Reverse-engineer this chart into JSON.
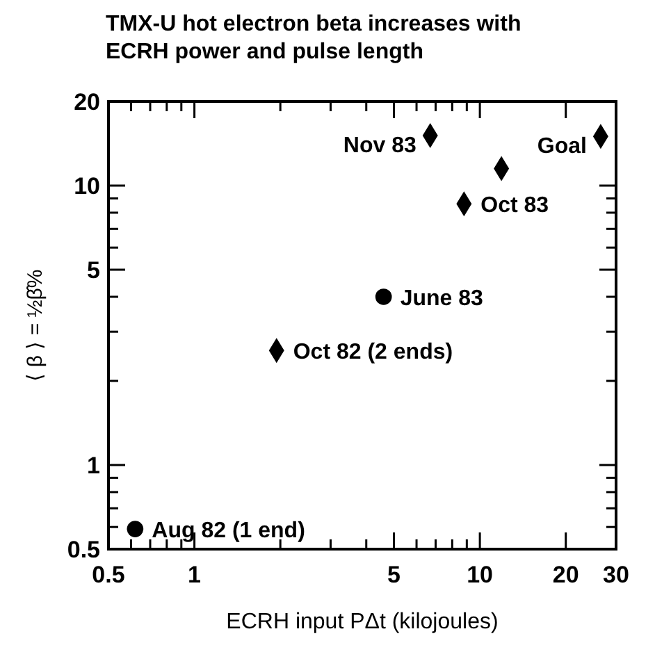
{
  "chart_data": {
    "type": "scatter",
    "title": "TMX-U hot electron beta increases with ECRH power and pulse length",
    "xlabel": "ECRH input PΔt (kilojoules)",
    "ylabel": "⟨ β ⟩ = ½β̂%",
    "log": "xy",
    "xlim": [
      0.5,
      30
    ],
    "ylim": [
      0.5,
      20
    ],
    "xticks": [
      0.5,
      {
        "value": 0.6,
        "label": null
      },
      {
        "value": 0.7,
        "label": null
      },
      {
        "value": 0.8,
        "label": null
      },
      {
        "value": 0.9,
        "label": null
      },
      1,
      {
        "value": 2,
        "label": null
      },
      {
        "value": 3,
        "label": null
      },
      {
        "value": 4,
        "label": null
      },
      5,
      {
        "value": 6,
        "label": null
      },
      {
        "value": 7,
        "label": null
      },
      {
        "value": 8,
        "label": null
      },
      {
        "value": 9,
        "label": null
      },
      10,
      20,
      30
    ],
    "yticks": [
      0.5,
      {
        "value": 0.6,
        "label": null
      },
      {
        "value": 0.7,
        "label": null
      },
      {
        "value": 0.8,
        "label": null
      },
      {
        "value": 0.9,
        "label": null
      },
      1,
      {
        "value": 2,
        "label": null
      },
      {
        "value": 3,
        "label": null
      },
      {
        "value": 4,
        "label": null
      },
      5,
      {
        "value": 6,
        "label": null
      },
      {
        "value": 7,
        "label": null
      },
      {
        "value": 8,
        "label": null
      },
      {
        "value": 9,
        "label": null
      },
      10,
      20
    ],
    "series": [
      {
        "color": "#000000",
        "marker": "circle",
        "x": [
          0.62,
          4.6
        ],
        "values": [
          0.59,
          4.0
        ]
      },
      {
        "color": "#000000",
        "marker": "diamond",
        "x": [
          1.94,
          6.7,
          8.8,
          11.9,
          26.5
        ],
        "values": [
          2.57,
          15.1,
          8.6,
          11.5,
          15.0
        ]
      }
    ],
    "annotations": [
      {
        "text": "Aug 82 (1 end)",
        "x": 0.62,
        "y": 0.59
      },
      {
        "text": "Oct 82 (2 ends)",
        "x": 1.94,
        "y": 2.57
      },
      {
        "text": "June 83",
        "x": 4.6,
        "y": 4.0
      },
      {
        "text": "Nov 83",
        "x": 6.7,
        "y": 15.1
      },
      {
        "text": "Oct 83",
        "x": 8.8,
        "y": 8.6
      },
      {
        "text": "Goal",
        "x": 26.5,
        "y": 15.0
      }
    ]
  }
}
